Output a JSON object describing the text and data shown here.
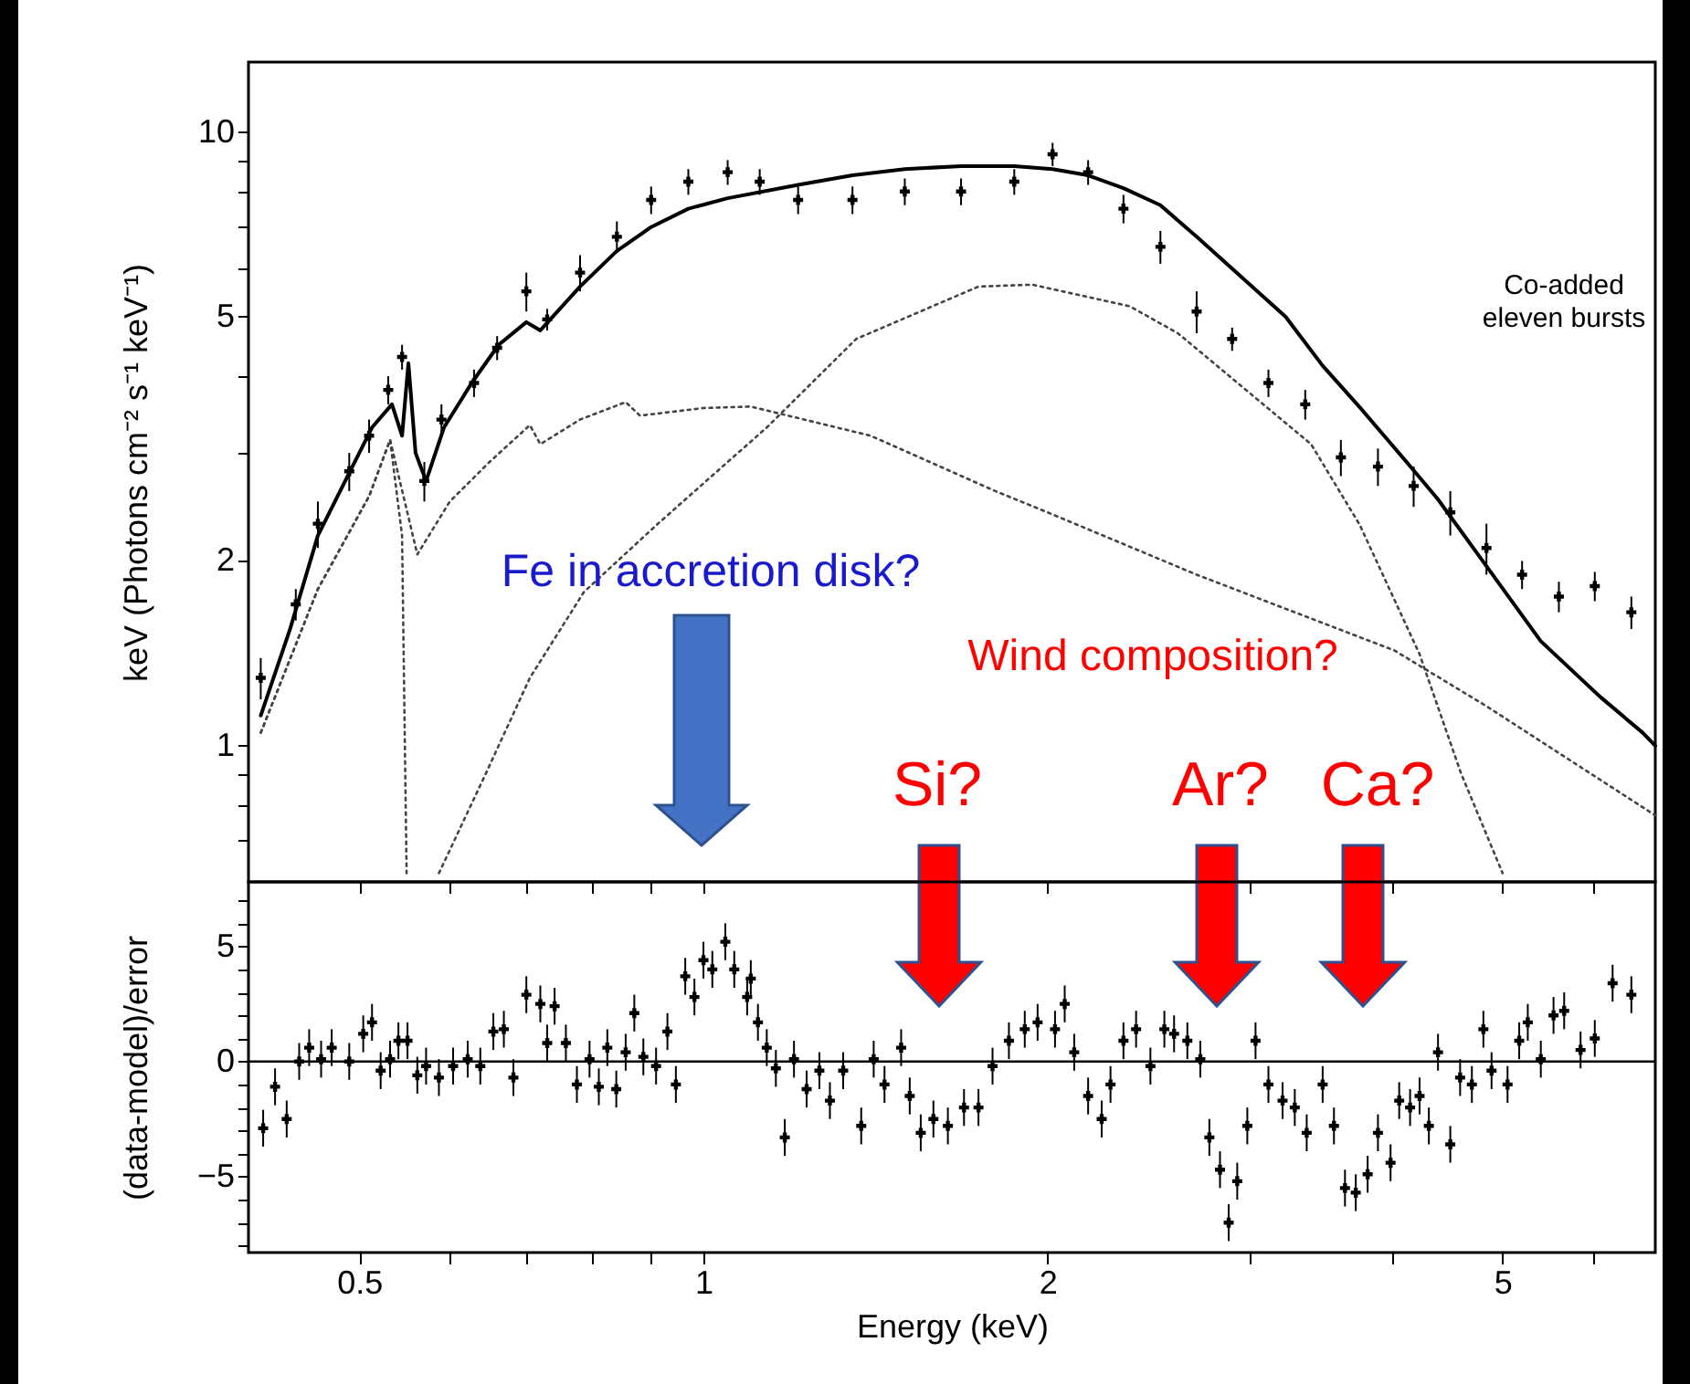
{
  "chart_data": [
    {
      "type": "line",
      "ylabel": "keV (Photons cm⁻² s⁻¹ keV⁻¹)",
      "log": "xy",
      "xlim": [
        0.4,
        6.8
      ],
      "ylim": [
        0.6,
        13
      ],
      "xticks": [
        0.5,
        {
          "value": 0.6,
          "label": null
        },
        {
          "value": 0.7,
          "label": null
        },
        {
          "value": 0.8,
          "label": null
        },
        {
          "value": 0.9,
          "label": null
        },
        1,
        2,
        {
          "value": 3,
          "label": null
        },
        {
          "value": 4,
          "label": null
        },
        5,
        {
          "value": 6,
          "label": null
        }
      ],
      "yticks": [
        {
          "value": 0.7,
          "label": null
        },
        {
          "value": 0.8,
          "label": null
        },
        {
          "value": 0.9,
          "label": null
        },
        1,
        2,
        {
          "value": 3,
          "label": null
        },
        {
          "value": 4,
          "label": null
        },
        5,
        {
          "value": 6,
          "label": null
        },
        {
          "value": 7,
          "label": null
        },
        {
          "value": 8,
          "label": null
        },
        {
          "value": 9,
          "label": null
        },
        10
      ],
      "tick_labels": "y",
      "grid": false,
      "annotations": [
        "Co-added\neleven bursts",
        "Fe in accretion disk?",
        "Wind composition?",
        "Si?",
        "Ar?",
        "Ca?"
      ],
      "series": [
        {
          "type": "scatter",
          "marker": "cross",
          "color": "#000000",
          "x": [
            0.41,
            0.44,
            0.46,
            0.49,
            0.51,
            0.53,
            0.545,
            0.57,
            0.59,
            0.63,
            0.66,
            0.7,
            0.73,
            0.78,
            0.84,
            0.9,
            0.97,
            1.05,
            1.12,
            1.21,
            1.35,
            1.5,
            1.68,
            1.87,
            2.02,
            2.17,
            2.33,
            2.51,
            2.7,
            2.9,
            3.12,
            3.36,
            3.61,
            3.89,
            4.18,
            4.5,
            4.84,
            5.2,
            5.6,
            6.02,
            6.48
          ],
          "values": [
            1.29,
            1.7,
            2.3,
            2.8,
            3.2,
            3.8,
            4.3,
            2.7,
            3.4,
            3.9,
            4.45,
            5.5,
            4.95,
            5.9,
            6.75,
            7.75,
            8.3,
            8.6,
            8.3,
            7.75,
            7.75,
            8.0,
            8.0,
            8.3,
            9.2,
            8.6,
            7.5,
            6.5,
            5.1,
            4.6,
            3.9,
            3.6,
            2.95,
            2.85,
            2.65,
            2.4,
            2.1,
            1.9,
            1.75,
            1.82,
            1.65
          ],
          "errors": [
            0.1,
            0.1,
            0.2,
            0.2,
            0.2,
            0.2,
            0.2,
            0.2,
            0.2,
            0.2,
            0.2,
            0.4,
            0.2,
            0.4,
            0.4,
            0.4,
            0.4,
            0.4,
            0.4,
            0.4,
            0.4,
            0.4,
            0.4,
            0.4,
            0.4,
            0.4,
            0.4,
            0.4,
            0.4,
            0.2,
            0.2,
            0.2,
            0.2,
            0.2,
            0.2,
            0.2,
            0.2,
            0.1,
            0.1,
            0.1,
            0.1
          ]
        },
        {
          "type": "line",
          "line_style": "solid",
          "color": "#000000",
          "x": [
            0.41,
            0.435,
            0.46,
            0.486,
            0.513,
            0.534,
            0.545,
            0.552,
            0.56,
            0.572,
            0.593,
            0.627,
            0.662,
            0.7,
            0.72,
            0.78,
            0.84,
            0.9,
            0.97,
            1.05,
            1.21,
            1.35,
            1.5,
            1.68,
            1.87,
            2.02,
            2.17,
            2.33,
            2.51,
            2.7,
            3.23,
            3.48,
            3.75,
            4.18,
            4.39,
            4.89,
            5.4,
            6.09,
            6.63,
            6.8
          ],
          "values": [
            1.12,
            1.55,
            2.2,
            2.7,
            3.3,
            3.6,
            3.2,
            4.2,
            3.0,
            2.7,
            3.3,
            3.9,
            4.5,
            4.9,
            4.75,
            5.6,
            6.4,
            7.0,
            7.5,
            7.8,
            8.2,
            8.5,
            8.7,
            8.8,
            8.8,
            8.7,
            8.5,
            8.1,
            7.6,
            6.75,
            5.0,
            4.16,
            3.56,
            2.81,
            2.52,
            1.91,
            1.48,
            1.2,
            1.05,
            1.0
          ]
        },
        {
          "line_style": "dotted",
          "color": "#444444",
          "x": [
            0.41,
            0.46,
            0.51,
            0.532,
            0.562,
            0.6,
            0.65,
            0.705,
            0.72,
            0.78,
            0.855,
            0.88,
            1.0,
            1.1,
            1.4,
            1.8,
            2.0,
            2.7,
            4.02,
            4.84,
            6.8
          ],
          "values": [
            1.05,
            1.8,
            2.55,
            3.15,
            2.05,
            2.5,
            2.9,
            3.33,
            3.1,
            3.4,
            3.63,
            3.45,
            3.55,
            3.57,
            3.2,
            2.6,
            2.4,
            1.9,
            1.43,
            1.16,
            0.77
          ]
        },
        {
          "line_style": "dotted",
          "color": "#444444",
          "x": [
            0.587,
            0.645,
            0.705,
            0.786,
            0.91,
            1.05,
            1.136,
            1.36,
            1.74,
            1.94,
            2.36,
            2.6,
            3.4,
            3.75,
            4.23,
            4.6,
            5.0
          ],
          "values": [
            0.62,
            0.9,
            1.29,
            1.78,
            2.29,
            2.9,
            3.3,
            4.6,
            5.6,
            5.64,
            5.2,
            4.7,
            3.1,
            2.29,
            1.41,
            0.9,
            0.62
          ]
        },
        {
          "line_style": "dotted",
          "color": "#444444",
          "x": [
            0.41,
            0.46,
            0.51,
            0.532,
            0.545,
            0.55
          ],
          "values": [
            1.05,
            1.8,
            2.55,
            3.15,
            2.2,
            0.62
          ]
        }
      ]
    },
    {
      "type": "scatter",
      "xlabel": "Energy (keV)",
      "ylabel": "(data-model)/error",
      "log": "x",
      "xlim": [
        0.4,
        6.8
      ],
      "ylim": [
        -8.3,
        7.8
      ],
      "xticks": [
        0.5,
        {
          "value": 0.6,
          "label": null
        },
        {
          "value": 0.7,
          "label": null
        },
        {
          "value": 0.8,
          "label": null
        },
        {
          "value": 0.9,
          "label": null
        },
        1,
        2,
        {
          "value": 3,
          "label": null
        },
        {
          "value": 4,
          "label": null
        },
        5,
        {
          "value": 6,
          "label": null
        }
      ],
      "yticks": [
        {
          "value": -8,
          "label": null
        },
        {
          "value": -7,
          "label": null
        },
        {
          "value": -6,
          "label": null
        },
        {
          "value": -5,
          "label": "−5"
        },
        {
          "value": -4,
          "label": null
        },
        {
          "value": -3,
          "label": null
        },
        {
          "value": -2,
          "label": null
        },
        {
          "value": -1,
          "label": null
        },
        0,
        {
          "value": 1,
          "label": null
        },
        {
          "value": 2,
          "label": null
        },
        {
          "value": 3,
          "label": null
        },
        {
          "value": 4,
          "label": null
        },
        5,
        {
          "value": 6,
          "label": null
        },
        {
          "value": 7,
          "label": null
        }
      ],
      "grid": false,
      "marker": "cross",
      "ref_lines": [
        {
          "axis": "y",
          "value": 0,
          "color": "#000000"
        }
      ],
      "series": [
        {
          "color": "#000000",
          "x": [
            0.412,
            0.422,
            0.432,
            0.443,
            0.452,
            0.463,
            0.473,
            0.49,
            0.504,
            0.513,
            0.522,
            0.532,
            0.541,
            0.551,
            0.562,
            0.572,
            0.587,
            0.604,
            0.622,
            0.638,
            0.655,
            0.669,
            0.682,
            0.7,
            0.72,
            0.73,
            0.741,
            0.758,
            0.775,
            0.795,
            0.81,
            0.824,
            0.839,
            0.855,
            0.87,
            0.886,
            0.909,
            0.93,
            0.946,
            0.964,
            0.982,
            1.0,
            1.018,
            1.045,
            1.064,
            1.092,
            1.1,
            1.116,
            1.136,
            1.157,
            1.178,
            1.2,
            1.231,
            1.263,
            1.29,
            1.325,
            1.374,
            1.409,
            1.44,
            1.489,
            1.515,
            1.549,
            1.589,
            1.636,
            1.69,
            1.74,
            1.79,
            1.85,
            1.91,
            1.96,
            2.03,
            2.07,
            2.11,
            2.17,
            2.23,
            2.27,
            2.33,
            2.39,
            2.46,
            2.53,
            2.58,
            2.65,
            2.72,
            2.77,
            2.83,
            2.88,
            2.93,
            2.99,
            3.04,
            3.12,
            3.21,
            3.29,
            3.37,
            3.48,
            3.56,
            3.64,
            3.72,
            3.81,
            3.89,
            3.99,
            4.06,
            4.15,
            4.23,
            4.31,
            4.39,
            4.5,
            4.59,
            4.7,
            4.81,
            4.89,
            5.05,
            5.17,
            5.26,
            5.4,
            5.54,
            5.66,
            5.85,
            6.02,
            6.24,
            6.48
          ],
          "values": [
            -2.9,
            -1.1,
            -2.5,
            0,
            0.6,
            0.1,
            0.6,
            0,
            1.2,
            1.7,
            -0.4,
            0.1,
            0.9,
            0.9,
            -0.6,
            -0.2,
            -0.7,
            -0.2,
            0.1,
            -0.2,
            1.3,
            1.4,
            -0.7,
            2.9,
            2.5,
            0.8,
            2.4,
            0.8,
            -1.0,
            0.1,
            -1.1,
            0.6,
            -1.2,
            0.4,
            2.1,
            0.2,
            -0.2,
            1.3,
            -1.0,
            3.7,
            2.8,
            4.4,
            4.0,
            5.2,
            4.0,
            2.8,
            3.6,
            1.7,
            0.6,
            -0.3,
            -3.3,
            0.1,
            -1.2,
            -0.4,
            -1.7,
            -0.4,
            -2.8,
            0.1,
            -1.0,
            0.6,
            -1.5,
            -3.1,
            -2.5,
            -2.8,
            -2.0,
            -2.0,
            -0.2,
            0.9,
            1.4,
            1.7,
            1.4,
            2.5,
            0.4,
            -1.5,
            -2.5,
            -1.0,
            0.9,
            1.4,
            -0.2,
            1.4,
            1.2,
            0.9,
            0.1,
            -3.3,
            -4.7,
            -7.0,
            -5.2,
            -2.8,
            0.9,
            -1.0,
            -1.7,
            -2.0,
            -3.1,
            -1.0,
            -2.8,
            -5.5,
            -5.7,
            -4.9,
            -3.1,
            -4.4,
            -1.7,
            -2.0,
            -1.5,
            -2.8,
            0.4,
            -3.6,
            -0.7,
            -1.0,
            1.4,
            -0.4,
            -1.0,
            0.9,
            1.7,
            0.1,
            2.0,
            2.2,
            0.5,
            1.0,
            3.4,
            2.9
          ],
          "errors": [
            0.8,
            0.8,
            0.8,
            0.8,
            0.8,
            0.8,
            0.8,
            0.8,
            0.8,
            0.8,
            0.8,
            0.8,
            0.8,
            0.8,
            0.8,
            0.8,
            0.8,
            0.8,
            0.8,
            0.8,
            0.8,
            0.8,
            0.8,
            0.8,
            0.8,
            0.8,
            0.8,
            0.8,
            0.8,
            0.8,
            0.8,
            0.8,
            0.8,
            0.8,
            0.8,
            0.8,
            0.8,
            0.8,
            0.8,
            0.8,
            0.8,
            0.8,
            0.8,
            0.8,
            0.8,
            0.8,
            0.8,
            0.8,
            0.8,
            0.8,
            0.8,
            0.8,
            0.8,
            0.8,
            0.8,
            0.8,
            0.8,
            0.8,
            0.8,
            0.8,
            0.8,
            0.8,
            0.8,
            0.8,
            0.8,
            0.8,
            0.8,
            0.8,
            0.8,
            0.8,
            0.8,
            0.8,
            0.8,
            0.8,
            0.8,
            0.8,
            0.8,
            0.8,
            0.8,
            0.8,
            0.8,
            0.8,
            0.8,
            0.8,
            0.8,
            0.8,
            0.8,
            0.8,
            0.8,
            0.8,
            0.8,
            0.8,
            0.8,
            0.8,
            0.8,
            0.8,
            0.8,
            0.8,
            0.8,
            0.8,
            0.8,
            0.8,
            0.8,
            0.8,
            0.8,
            0.8,
            0.8,
            0.8,
            0.8,
            0.8,
            0.8,
            0.8,
            0.8,
            0.8,
            0.8,
            0.8,
            0.8,
            0.8,
            0.8,
            0.8
          ]
        }
      ]
    }
  ]
}
